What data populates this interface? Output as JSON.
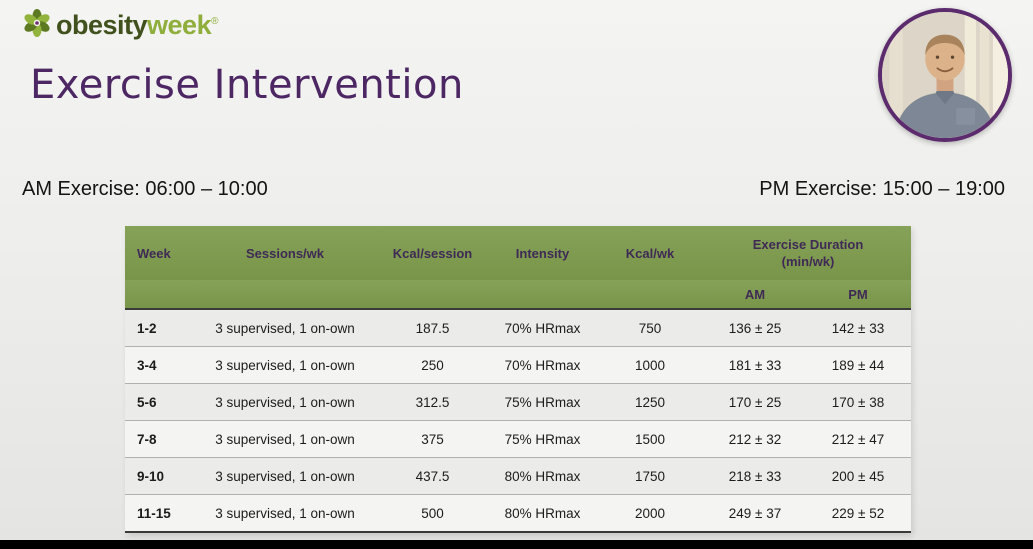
{
  "logo": {
    "bold": "obesity",
    "light": "week",
    "registered": "®"
  },
  "header": {
    "title": "Exercise Intervention"
  },
  "schedule": {
    "am": "AM Exercise: 06:00 – 10:00",
    "pm": "PM Exercise: 15:00 – 19:00"
  },
  "table": {
    "columns": [
      "Week",
      "Sessions/wk",
      "Kcal/session",
      "Intensity",
      "Kcal/wk"
    ],
    "duration": {
      "title": "Exercise Duration",
      "subtitle": "(min/wk)",
      "am": "AM",
      "pm": "PM"
    },
    "rows": [
      {
        "week": "1-2",
        "sessions": "3 supervised, 1 on-own",
        "kcal_session": "187.5",
        "intensity": "70% HRmax",
        "kcal_wk": "750",
        "am": "136 ± 25",
        "pm": "142 ± 33"
      },
      {
        "week": "3-4",
        "sessions": "3 supervised, 1 on-own",
        "kcal_session": "250",
        "intensity": "70% HRmax",
        "kcal_wk": "1000",
        "am": "181 ± 33",
        "pm": "189 ± 44"
      },
      {
        "week": "5-6",
        "sessions": "3 supervised, 1 on-own",
        "kcal_session": "312.5",
        "intensity": "75% HRmax",
        "kcal_wk": "1250",
        "am": "170 ± 25",
        "pm": "170 ± 38"
      },
      {
        "week": "7-8",
        "sessions": "3 supervised, 1 on-own",
        "kcal_session": "375",
        "intensity": "75% HRmax",
        "kcal_wk": "1500",
        "am": "212 ± 32",
        "pm": "212 ± 47"
      },
      {
        "week": "9-10",
        "sessions": "3 supervised, 1 on-own",
        "kcal_session": "437.5",
        "intensity": "80% HRmax",
        "kcal_wk": "1750",
        "am": "218 ± 33",
        "pm": "200 ± 45"
      },
      {
        "week": "11-15",
        "sessions": "3 supervised, 1 on-own",
        "kcal_session": "500",
        "intensity": "80% HRmax",
        "kcal_wk": "2000",
        "am": "249 ± 37",
        "pm": "229 ± 52"
      }
    ]
  },
  "colors": {
    "title_purple": "#4c2763",
    "header_green": "#7f9c52",
    "header_text_purple": "#3f2a55",
    "logo_dark_green": "#41511d",
    "logo_light_green": "#8fae3c",
    "webcam_ring_purple": "#5c2b6d"
  },
  "chart_data": {
    "type": "table",
    "title": "Exercise Intervention",
    "columns": [
      "Week",
      "Sessions/wk",
      "Kcal/session",
      "Intensity",
      "Kcal/wk",
      "Exercise Duration AM (min/wk)",
      "Exercise Duration PM (min/wk)"
    ],
    "rows": [
      [
        "1-2",
        "3 supervised, 1 on-own",
        187.5,
        "70% HRmax",
        750,
        "136 ± 25",
        "142 ± 33"
      ],
      [
        "3-4",
        "3 supervised, 1 on-own",
        250,
        "70% HRmax",
        1000,
        "181 ± 33",
        "189 ± 44"
      ],
      [
        "5-6",
        "3 supervised, 1 on-own",
        312.5,
        "75% HRmax",
        1250,
        "170 ± 25",
        "170 ± 38"
      ],
      [
        "7-8",
        "3 supervised, 1 on-own",
        375,
        "75% HRmax",
        1500,
        "212 ± 32",
        "212 ± 47"
      ],
      [
        "9-10",
        "3 supervised, 1 on-own",
        437.5,
        "80% HRmax",
        1750,
        "218 ± 33",
        "200 ± 45"
      ],
      [
        "11-15",
        "3 supervised, 1 on-own",
        500,
        "80% HRmax",
        2000,
        "249 ± 37",
        "229 ± 52"
      ]
    ]
  }
}
